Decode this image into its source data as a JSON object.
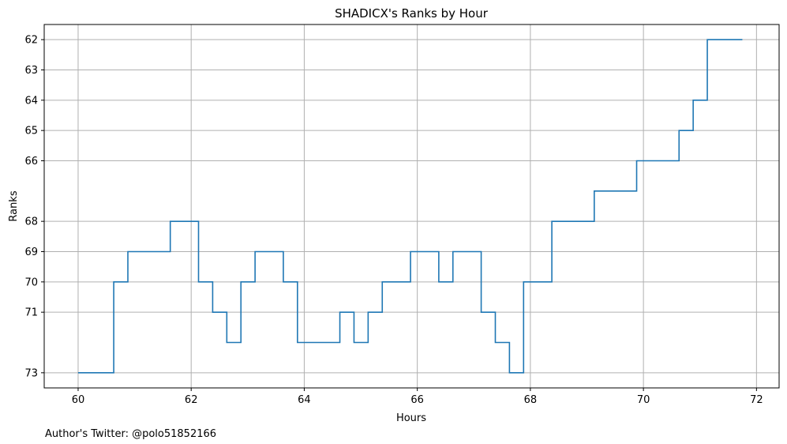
{
  "chart_data": {
    "type": "line",
    "title": "SHADICX's Ranks by Hour",
    "xlabel": "Hours",
    "ylabel": "Ranks",
    "xlim": [
      59.4,
      72.4
    ],
    "ylim": [
      73.5,
      61.5
    ],
    "y_inverted": true,
    "x_ticks": [
      60,
      62,
      64,
      66,
      68,
      70,
      72
    ],
    "y_ticks": [
      62,
      63,
      64,
      65,
      66,
      68,
      69,
      70,
      71,
      73
    ],
    "grid": true,
    "line_color": "#1f77b4",
    "step": "post",
    "series": [
      {
        "x": [
          60.0,
          60.63,
          60.88,
          61.63,
          62.13,
          62.38,
          62.63,
          62.88,
          63.13,
          63.63,
          63.88,
          64.63,
          64.88,
          65.13,
          65.38,
          65.88,
          66.38,
          66.63,
          67.13,
          67.38,
          67.63,
          67.88,
          68.38,
          69.13,
          69.88,
          70.63,
          70.88,
          71.13,
          71.75
        ],
        "y": [
          73,
          70,
          69,
          68,
          70,
          71,
          72,
          70,
          69,
          70,
          72,
          71,
          72,
          71,
          70,
          69,
          70,
          69,
          71,
          72,
          73,
          70,
          68,
          67,
          66,
          65,
          64,
          62,
          62
        ]
      }
    ]
  },
  "footer_text": "Author's Twitter: @polo51852166"
}
